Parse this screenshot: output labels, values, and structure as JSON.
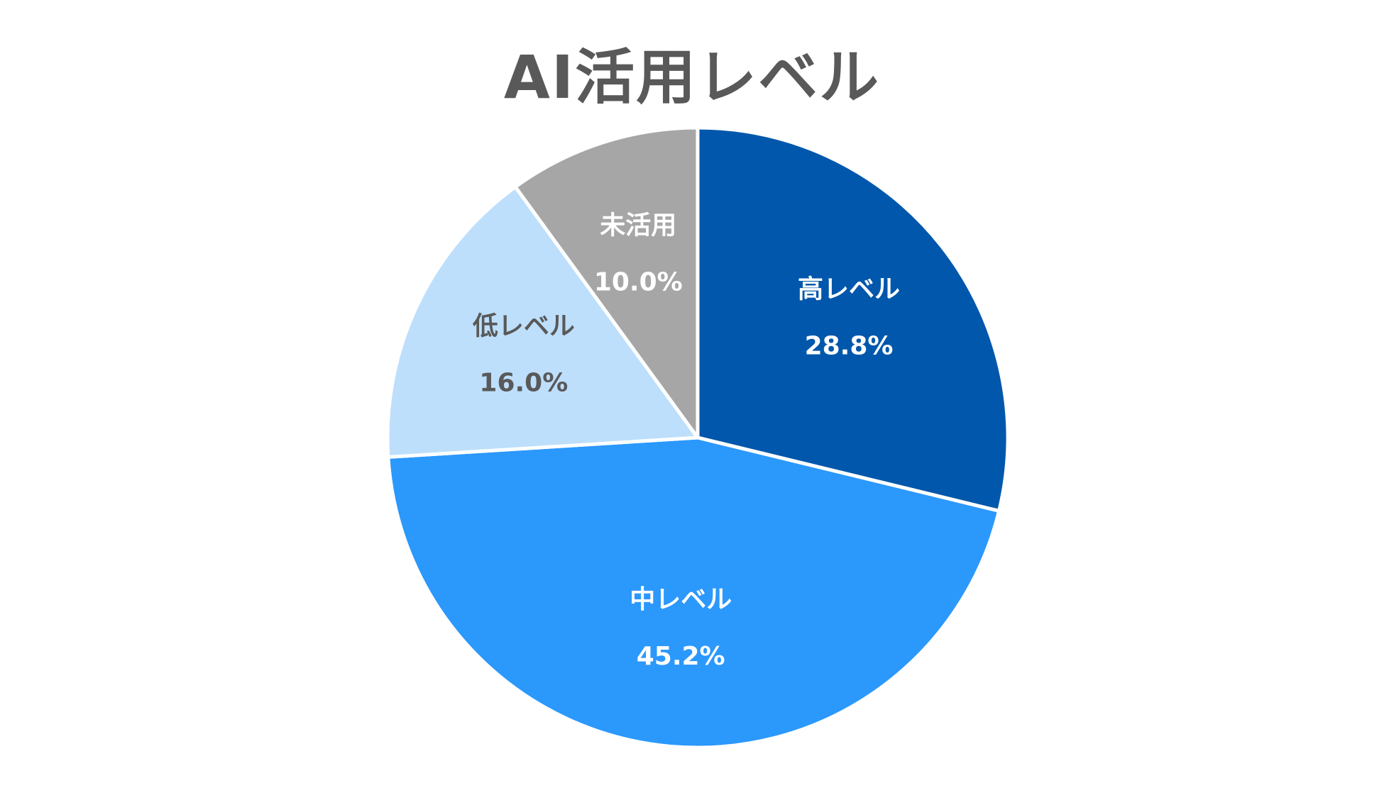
{
  "chart_data": {
    "type": "pie",
    "title": "AI活用レベル",
    "categories": [
      "高レベル",
      "中レベル",
      "低レベル",
      "未活用"
    ],
    "values": [
      28.8,
      45.2,
      16.0,
      10.0
    ],
    "value_labels": [
      "28.8%",
      "45.2%",
      "16.0%",
      "10.0%"
    ],
    "colors": [
      "#0057AB",
      "#2B98FC",
      "#BDDFFC",
      "#A6A6A6"
    ],
    "label_colors": [
      "#FFFFFF",
      "#FFFFFF",
      "#595959",
      "#FFFFFF"
    ],
    "start_angle": "12 o'clock",
    "direction": "clockwise",
    "legend": "none"
  }
}
